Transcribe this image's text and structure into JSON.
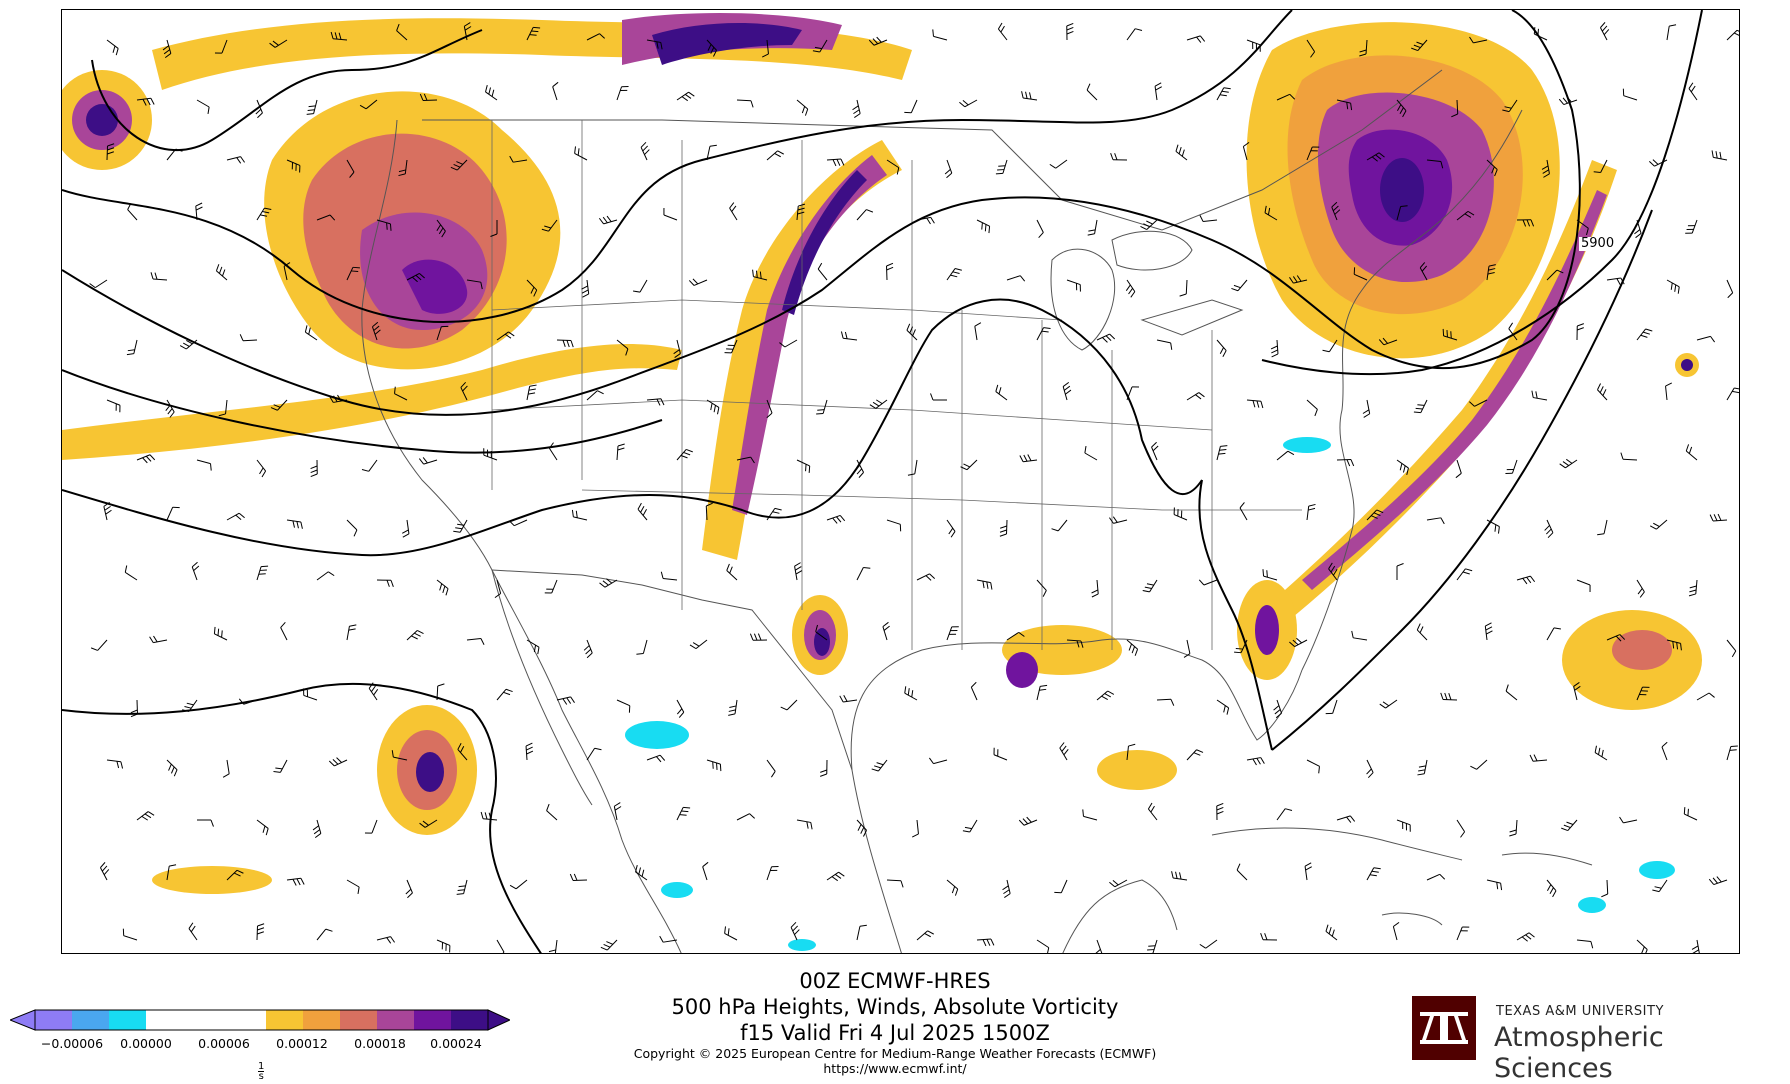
{
  "map": {
    "contour_labels": [
      "5900"
    ],
    "vorticity_colors": {
      "neg_strong": "#8e7cf5",
      "neg_mid": "#4aa7ef",
      "neg_weak": "#18dcf2",
      "zero": "#ffffff",
      "pos1": "#f7c533",
      "pos2": "#f0a13d",
      "pos3": "#d87060",
      "pos4": "#a94599",
      "pos5": "#70149e",
      "pos6": "#3d0e86"
    },
    "line_colors": {
      "coast": "#555555",
      "contour": "#000000",
      "barb": "#000000"
    }
  },
  "colorbar": {
    "tick_labels": [
      "−0.00006",
      "0.00000",
      "0.00006",
      "0.00012",
      "0.00018",
      "0.00024"
    ],
    "unit_top": "1",
    "unit_bottom": "s"
  },
  "title": {
    "line1": "00Z ECMWF-HRES",
    "line2": "500 hPa Heights, Winds, Absolute Vorticity",
    "line3": "f15 Valid Fri 4 Jul 2025 1500Z",
    "copyright": "Copyright © 2025 European Centre for Medium-Range Weather Forecasts (ECMWF)",
    "url": "https://www.ecmwf.int/"
  },
  "branding": {
    "logo_text": "ATM",
    "university": "TEXAS A&M UNIVERSITY",
    "department": "Atmospheric Sciences"
  }
}
